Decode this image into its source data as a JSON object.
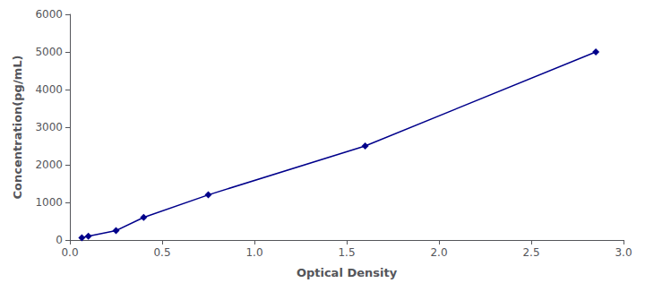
{
  "chart_data": {
    "type": "line",
    "x": [
      0.065,
      0.1,
      0.25,
      0.4,
      0.75,
      1.6,
      2.85
    ],
    "values": [
      60,
      100,
      250,
      600,
      1200,
      2500,
      5000
    ],
    "color": "#00008B",
    "marker": "diamond",
    "line_style": "solid",
    "xlabel": "Optical Density",
    "ylabel": "Concentration(pg/mL)",
    "xlim": [
      0,
      3
    ],
    "ylim": [
      0,
      6000
    ],
    "xticks": [
      {
        "value": 0,
        "label": "0.0"
      },
      {
        "value": 0.5,
        "label": "0.5"
      },
      {
        "value": 1,
        "label": "1.0"
      },
      {
        "value": 1.5,
        "label": "1.5"
      },
      {
        "value": 2,
        "label": "2.0"
      },
      {
        "value": 2.5,
        "label": "2.5"
      },
      {
        "value": 3,
        "label": "3.0"
      }
    ],
    "yticks": [
      0,
      1000,
      2000,
      3000,
      4000,
      5000,
      6000
    ],
    "grid": false
  }
}
